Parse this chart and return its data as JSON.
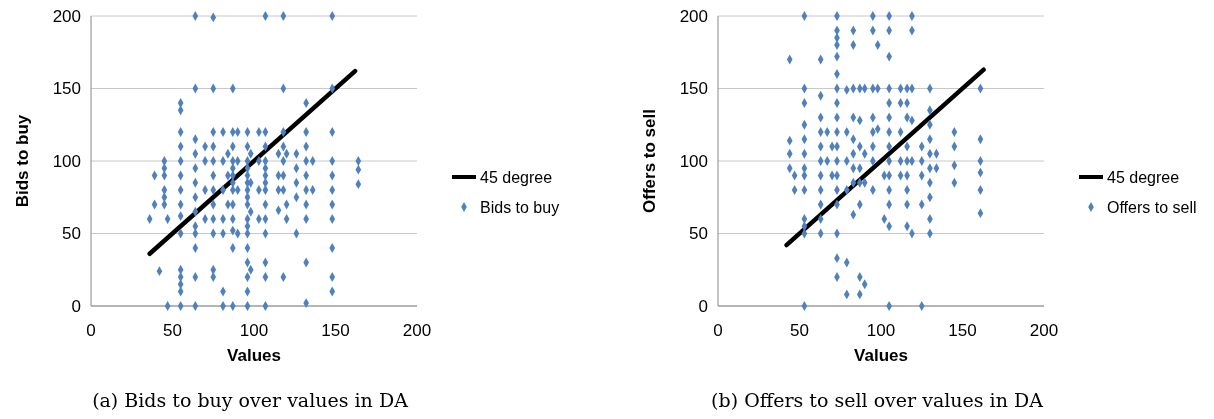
{
  "chart_data": [
    {
      "type": "scatter",
      "xlabel": "Values",
      "ylabel": "Bids to buy",
      "annotations": [
        "(a) Bids to buy over values in DA"
      ],
      "xlim": [
        0,
        200
      ],
      "ylim": [
        0,
        200
      ],
      "xticks": [
        0,
        50,
        100,
        150,
        200
      ],
      "yticks": [
        0,
        50,
        100,
        150,
        200
      ],
      "grid": "y",
      "legend": "right",
      "series": [
        {
          "name": "45 degree",
          "type": "line",
          "color": "#000000",
          "x": [
            36,
            162
          ],
          "values": [
            36,
            162
          ]
        },
        {
          "name": "Bids to buy",
          "marker": "diamond",
          "color": "#4f81bd",
          "x": [
            36,
            39,
            39,
            42,
            45,
            45,
            45,
            45,
            45,
            45,
            47,
            47,
            55,
            55,
            55,
            55,
            55,
            55,
            55,
            55,
            55,
            55,
            55,
            55,
            55,
            55,
            55,
            64,
            64,
            64,
            64,
            64,
            64,
            64,
            64,
            64,
            64,
            64,
            64,
            64,
            70,
            70,
            70,
            70,
            75,
            75,
            75,
            75,
            75,
            75,
            75,
            75,
            75,
            75,
            75,
            75,
            81,
            81,
            81,
            81,
            81,
            81,
            81,
            84,
            84,
            84,
            87,
            87,
            87,
            87,
            87,
            87,
            87,
            87,
            87,
            87,
            87,
            87,
            87,
            90,
            90,
            90,
            90,
            96,
            96,
            96,
            96,
            96,
            96,
            96,
            96,
            96,
            96,
            96,
            96,
            96,
            96,
            96,
            96,
            96,
            98,
            98,
            98,
            98,
            103,
            103,
            103,
            103,
            107,
            107,
            107,
            107,
            107,
            107,
            107,
            107,
            107,
            107,
            107,
            107,
            107,
            107,
            115,
            115,
            115,
            115,
            118,
            118,
            118,
            118,
            118,
            118,
            118,
            118,
            120,
            120,
            120,
            126,
            126,
            126,
            126,
            126,
            132,
            132,
            132,
            132,
            132,
            132,
            132,
            132,
            132,
            132,
            136,
            136,
            148,
            148,
            148,
            148,
            148,
            148,
            148,
            148,
            148,
            148,
            148,
            164,
            164,
            164
          ],
          "values": [
            60,
            90,
            70,
            24,
            100,
            95,
            90,
            80,
            75,
            70,
            60,
            0,
            140,
            135,
            120,
            110,
            100,
            90,
            80,
            70,
            62,
            50,
            25,
            20,
            15,
            10,
            0,
            200,
            150,
            115,
            105,
            95,
            85,
            75,
            65,
            55,
            50,
            40,
            20,
            0,
            110,
            100,
            80,
            60,
            199,
            150,
            120,
            110,
            100,
            90,
            80,
            70,
            60,
            50,
            25,
            20,
            120,
            100,
            80,
            60,
            50,
            10,
            0,
            105,
            90,
            70,
            150,
            120,
            110,
            100,
            95,
            90,
            85,
            80,
            70,
            60,
            52,
            40,
            0,
            120,
            100,
            80,
            50,
            120,
            110,
            100,
            95,
            90,
            85,
            80,
            75,
            70,
            60,
            55,
            50,
            40,
            30,
            20,
            10,
            0,
            105,
            85,
            65,
            25,
            120,
            100,
            80,
            60,
            200,
            120,
            110,
            100,
            95,
            90,
            85,
            80,
            70,
            60,
            50,
            30,
            20,
            0,
            105,
            90,
            80,
            66,
            200,
            150,
            120,
            110,
            100,
            90,
            80,
            20,
            105,
            70,
            60,
            105,
            95,
            85,
            75,
            50,
            140,
            120,
            110,
            100,
            90,
            80,
            70,
            60,
            30,
            2,
            100,
            80,
            200,
            150,
            120,
            100,
            90,
            80,
            70,
            60,
            40,
            20,
            10,
            100,
            94,
            84
          ]
        }
      ]
    },
    {
      "type": "scatter",
      "xlabel": "Values",
      "ylabel": "Offers to sell",
      "annotations": [
        "(b) Offers to sell over values in DA"
      ],
      "xlim": [
        0,
        200
      ],
      "ylim": [
        0,
        200
      ],
      "xticks": [
        0,
        50,
        100,
        150,
        200
      ],
      "yticks": [
        0,
        50,
        100,
        150,
        200
      ],
      "grid": "y",
      "legend": "right",
      "series": [
        {
          "name": "45 degree",
          "type": "line",
          "color": "#000000",
          "x": [
            42,
            163
          ],
          "values": [
            42,
            163
          ]
        },
        {
          "name": "Offers to sell",
          "marker": "diamond",
          "color": "#4f81bd",
          "x": [
            44,
            44,
            44,
            44,
            47,
            47,
            53,
            53,
            53,
            53,
            53,
            53,
            53,
            53,
            53,
            53,
            53,
            53,
            53,
            63,
            63,
            63,
            63,
            63,
            63,
            63,
            63,
            63,
            63,
            63,
            67,
            67,
            73,
            73,
            73,
            73,
            73,
            73,
            73,
            73,
            73,
            73,
            73,
            73,
            73,
            73,
            73,
            73,
            73,
            73,
            70,
            70,
            79,
            79,
            79,
            79,
            79,
            79,
            83,
            83,
            83,
            83,
            83,
            83,
            83,
            83,
            83,
            87,
            87,
            87,
            87,
            87,
            87,
            87,
            87,
            90,
            90,
            90,
            90,
            95,
            95,
            95,
            95,
            95,
            95,
            95,
            95,
            98,
            98,
            98,
            102,
            102,
            105,
            105,
            105,
            105,
            105,
            105,
            105,
            105,
            105,
            105,
            105,
            105,
            105,
            105,
            112,
            112,
            112,
            112,
            112,
            116,
            116,
            116,
            116,
            116,
            116,
            116,
            116,
            116,
            119,
            119,
            119,
            119,
            119,
            119,
            125,
            125,
            125,
            125,
            125,
            130,
            130,
            130,
            130,
            130,
            130,
            130,
            130,
            130,
            130,
            134,
            134,
            145,
            145,
            145,
            145,
            161,
            161,
            161,
            161,
            161,
            161
          ],
          "values": [
            170,
            114,
            105,
            95,
            90,
            80,
            200,
            150,
            140,
            125,
            115,
            105,
            95,
            90,
            80,
            60,
            55,
            50,
            0,
            170,
            145,
            130,
            120,
            110,
            100,
            90,
            80,
            70,
            60,
            50,
            120,
            100,
            200,
            190,
            185,
            180,
            172,
            160,
            150,
            140,
            130,
            120,
            110,
            100,
            90,
            80,
            70,
            50,
            33,
            20,
            110,
            90,
            149,
            120,
            100,
            80,
            30,
            8,
            190,
            180,
            150,
            130,
            115,
            105,
            95,
            85,
            63,
            150,
            128,
            110,
            95,
            85,
            70,
            20,
            8,
            150,
            105,
            85,
            15,
            200,
            190,
            150,
            130,
            120,
            110,
            100,
            80,
            180,
            150,
            122,
            60,
            90,
            200,
            190,
            172,
            150,
            140,
            130,
            120,
            110,
            100,
            90,
            80,
            70,
            55,
            0,
            150,
            140,
            120,
            100,
            90,
            150,
            140,
            130,
            110,
            100,
            90,
            80,
            70,
            55,
            200,
            190,
            150,
            128,
            100,
            50,
            110,
            100,
            90,
            70,
            0,
            150,
            135,
            125,
            115,
            105,
            95,
            85,
            75,
            60,
            50,
            105,
            95,
            120,
            110,
            97,
            85,
            150,
            115,
            100,
            92,
            80,
            64
          ]
        }
      ]
    }
  ]
}
